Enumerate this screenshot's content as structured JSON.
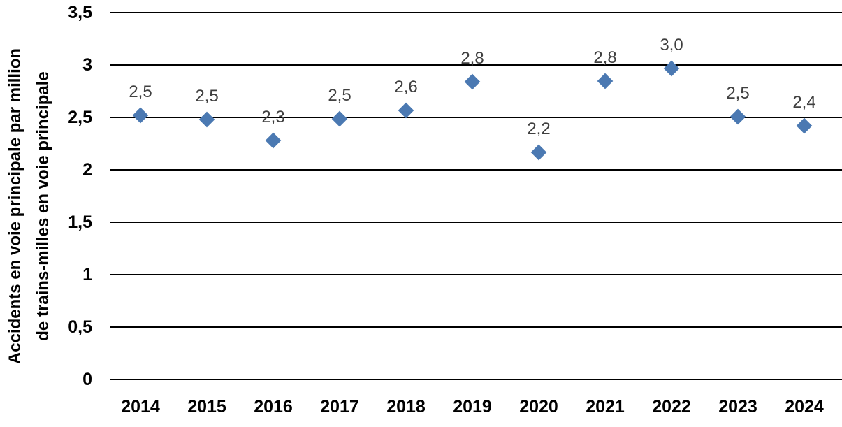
{
  "chart_data": {
    "type": "scatter",
    "title": "",
    "ylabel_line1": "Accidents en voie principale par million",
    "ylabel_line2": "de trains-milles en voie principale",
    "xlabel": "",
    "categories": [
      "2014",
      "2015",
      "2016",
      "2017",
      "2018",
      "2019",
      "2020",
      "2021",
      "2022",
      "2023",
      "2024"
    ],
    "values": [
      2.52,
      2.48,
      2.28,
      2.49,
      2.57,
      2.84,
      2.17,
      2.85,
      2.97,
      2.51,
      2.42
    ],
    "point_labels": [
      "2,5",
      "2,5",
      "2,3",
      "2,5",
      "2,6",
      "2,8",
      "2,2",
      "2,8",
      "3,0",
      "2,5",
      "2,4"
    ],
    "ytick_values": [
      0,
      0.5,
      1,
      1.5,
      2,
      2.5,
      3,
      3.5
    ],
    "ytick_labels": [
      "0",
      "0,5",
      "1",
      "1,5",
      "2",
      "2,5",
      "3",
      "3,5"
    ],
    "ylim": [
      0,
      3.5
    ],
    "grid": "horizontal",
    "legend": "none",
    "decimal_separator": ",",
    "marker_shape": "diamond",
    "colors": {
      "marker": "#4B79B2",
      "gridline": "#000000",
      "tick_label": "#000000",
      "data_label": "#404040"
    }
  }
}
